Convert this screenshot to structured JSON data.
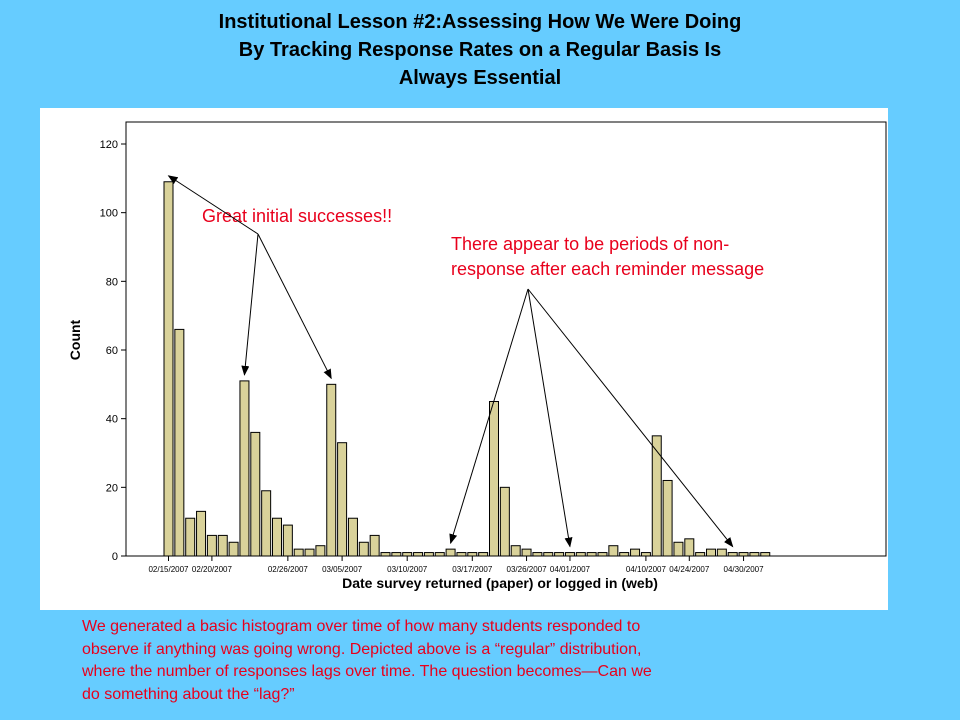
{
  "slide": {
    "title_lines": [
      "Institutional Lesson #2:Assessing How We Were Doing",
      "By Tracking Response Rates on a Regular Basis Is",
      "Always Essential"
    ],
    "caption_lines": [
      "We generated a basic histogram over time of how many students responded to",
      "observe if anything was going wrong. Depicted above is a “regular” distribution,",
      "where the number of responses lags over time. The question becomes—Can we",
      "do something about the “lag?”"
    ]
  },
  "chart_data": {
    "type": "bar",
    "title": "",
    "xlabel": "Date survey returned (paper) or logged in (web)",
    "ylabel": "Count",
    "ylim": [
      0,
      120
    ],
    "yticks": [
      0,
      20,
      40,
      60,
      80,
      100,
      120
    ],
    "grid": false,
    "x_tick_labels": [
      "02/15/2007",
      "02/20/2007",
      "02/26/2007",
      "03/05/2007",
      "03/10/2007",
      "03/17/2007",
      "03/26/2007",
      "04/01/2007",
      "04/10/2007",
      "04/24/2007",
      "04/30/2007"
    ],
    "x_tick_bar_index": [
      0,
      4,
      11,
      16,
      22,
      28,
      33,
      37,
      44,
      48,
      53
    ],
    "values": [
      109,
      66,
      11,
      13,
      6,
      6,
      4,
      51,
      36,
      19,
      11,
      9,
      2,
      2,
      3,
      50,
      33,
      11,
      4,
      6,
      1,
      1,
      1,
      1,
      1,
      1,
      2,
      1,
      1,
      1,
      45,
      20,
      3,
      2,
      1,
      1,
      1,
      1,
      1,
      1,
      1,
      3,
      1,
      2,
      1,
      35,
      22,
      4,
      5,
      1,
      2,
      2,
      1,
      1,
      1,
      1
    ],
    "bar_color": "#d9d29a",
    "bar_edge_color": "#000000",
    "annotation_color": "#e8001c",
    "annotations": [
      {
        "text_lines": [
          "Great initial successes!!"
        ],
        "arrow_targets": [
          0,
          7,
          15
        ]
      },
      {
        "text_lines": [
          "There appear to be periods of non-",
          "response after each reminder message"
        ],
        "arrow_targets": [
          26,
          37,
          52
        ]
      }
    ]
  }
}
